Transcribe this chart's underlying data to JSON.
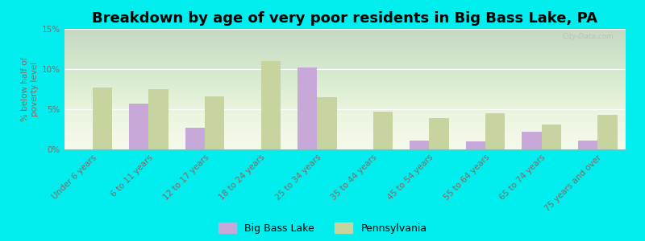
{
  "title": "Breakdown by age of very poor residents in Big Bass Lake, PA",
  "categories": [
    "Under 6 years",
    "6 to 11 years",
    "12 to 17 years",
    "18 to 24 years",
    "25 to 34 years",
    "35 to 44 years",
    "45 to 54 years",
    "55 to 64 years",
    "65 to 74 years",
    "75 years and over"
  ],
  "big_bass_lake": [
    0,
    5.7,
    2.7,
    0,
    10.2,
    0,
    1.1,
    1.0,
    2.2,
    1.1
  ],
  "pennsylvania": [
    7.7,
    7.5,
    6.6,
    11.0,
    6.5,
    4.7,
    3.9,
    4.5,
    3.1,
    4.3
  ],
  "bar_color_bbl": "#c8a8d8",
  "bar_color_pa": "#c8d4a0",
  "bg_color_plot_top": "#f5f8e8",
  "bg_color_plot_bot": "#d0dca0",
  "bg_color_fig": "#00eeee",
  "ylabel": "% below half of\npoverty level",
  "ylim": [
    0,
    15
  ],
  "yticks": [
    0,
    5,
    10,
    15
  ],
  "ytick_labels": [
    "0%",
    "5%",
    "10%",
    "15%"
  ],
  "legend_bbl": "Big Bass Lake",
  "legend_pa": "Pennsylvania",
  "watermark": "City-Data.com",
  "title_fontsize": 13,
  "label_fontsize": 7.5,
  "tick_color": "#886666"
}
